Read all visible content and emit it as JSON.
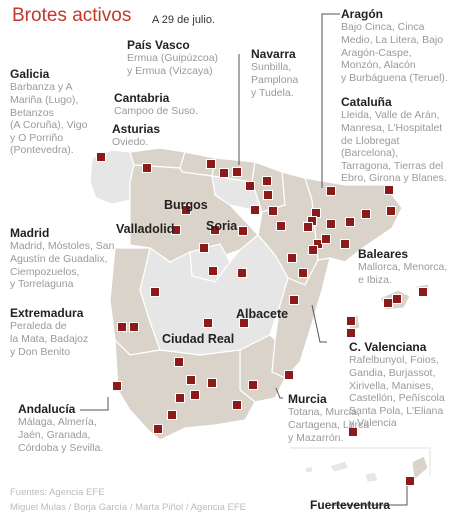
{
  "title": "Brotes activos",
  "date": "A 29 de julio.",
  "colors": {
    "accent": "#c0392b",
    "marker": "#8b1a1a",
    "affected": "#d9d3c9",
    "unaffected": "#e6e6e6",
    "border": "#ffffff"
  },
  "regions": [
    {
      "key": "galicia",
      "name": "Galicia",
      "places": [
        "Barbanza y A",
        "Mariña (Lugo),",
        "Betanzos",
        "(A Coruña), Vigo",
        "y O Porriño",
        "(Pontevedra)."
      ]
    },
    {
      "key": "asturias",
      "name": "Asturias",
      "places": [
        "Oviedo."
      ]
    },
    {
      "key": "cantabria",
      "name": "Cantabria",
      "places": [
        "Campoo de Suso."
      ]
    },
    {
      "key": "pais_vasco",
      "name": "País Vasco",
      "places": [
        "Ermua (Guipúzcoa)",
        "y Ermua (Vizcaya)"
      ]
    },
    {
      "key": "navarra",
      "name": "Navarra",
      "places": [
        "Sunbilla,",
        "Pamplona",
        "y Tudela."
      ]
    },
    {
      "key": "aragon",
      "name": "Aragón",
      "places": [
        "Bajo Cinca, Cinca",
        "Medio, La Litera, Bajo",
        "Aragón-Caspe,",
        "Monzón, Alacón",
        "y Burbáguena (Teruel)."
      ]
    },
    {
      "key": "cataluna",
      "name": "Cataluña",
      "places": [
        "Lleida, Valle de Arán,",
        "Manresa, L'Hospitalet",
        "de Llobregat",
        "(Barcelona),",
        "Tarragona, Tierras del",
        "Ebro, Girona y Blanes."
      ]
    },
    {
      "key": "madrid",
      "name": "Madrid",
      "places": [
        "Madrid, Móstoles, San",
        "Agustín de Guadalix,",
        "Ciempozuelos,",
        "y Torrelaguna"
      ]
    },
    {
      "key": "baleares",
      "name": "Baleares",
      "places": [
        "Mallorca, Menorca,",
        "e Ibiza."
      ]
    },
    {
      "key": "extremadura",
      "name": "Extremadura",
      "places": [
        "Peraleda de",
        "la Mata, Badajoz",
        "y Don Benito"
      ]
    },
    {
      "key": "c_valenciana",
      "name": "C. Valenciana",
      "places": [
        "Rafelbunyol, Foios,",
        "Gandia, Burjassot,",
        "Xirivella, Manises,",
        "Castellón, Peñíscola",
        "Santa Pola, L'Eliana",
        "y Valencia"
      ]
    },
    {
      "key": "andalucia",
      "name": "Andalucía",
      "places": [
        "Málaga, Almería,",
        "Jaén, Granada,",
        "Córdoba y Sevilla."
      ]
    },
    {
      "key": "murcia",
      "name": "Murcia",
      "places": [
        "Totana, Murcia,",
        "Cartagena, Lorca",
        "y Mazarrón."
      ]
    },
    {
      "key": "fuerteventura",
      "name": "Fuerteventura",
      "places": []
    }
  ],
  "cities": [
    "Burgos",
    "Valladolid",
    "Soria",
    "Albacete",
    "Ciudad Real"
  ],
  "credits": [
    "Fuentes: Agencia EFE",
    "Miguel Mulas / Borja García / Marta Piñol / Agencia EFE"
  ]
}
